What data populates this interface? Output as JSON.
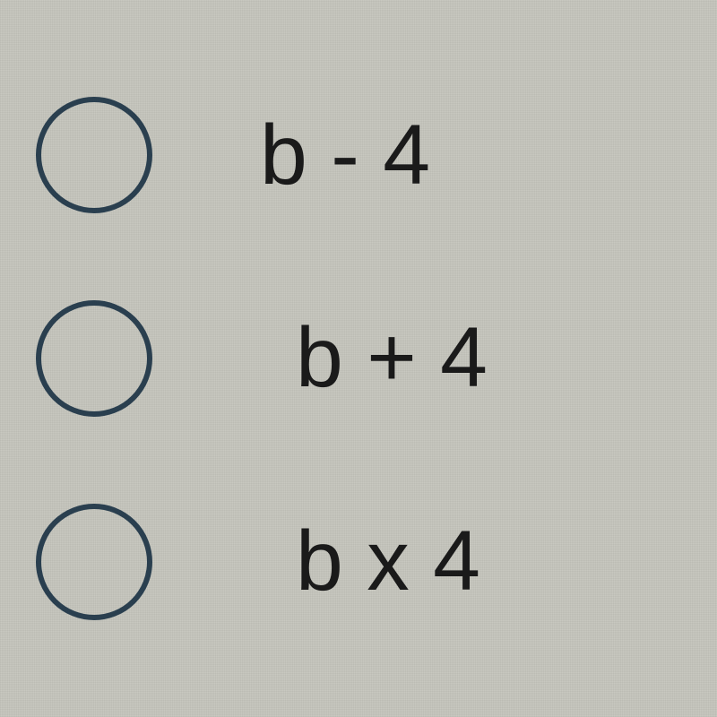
{
  "quiz": {
    "options": [
      {
        "label": "b - 4",
        "selected": false
      },
      {
        "label": "b + 4",
        "selected": false
      },
      {
        "label": "b x 4",
        "selected": false
      }
    ]
  },
  "styling": {
    "background_color": "#c8c8c0",
    "radio_border_color": "#2a3f4f",
    "radio_border_width": 6,
    "radio_diameter": 130,
    "label_color": "#1a1a1a",
    "label_fontsize": 95,
    "font_family": "Arial"
  }
}
